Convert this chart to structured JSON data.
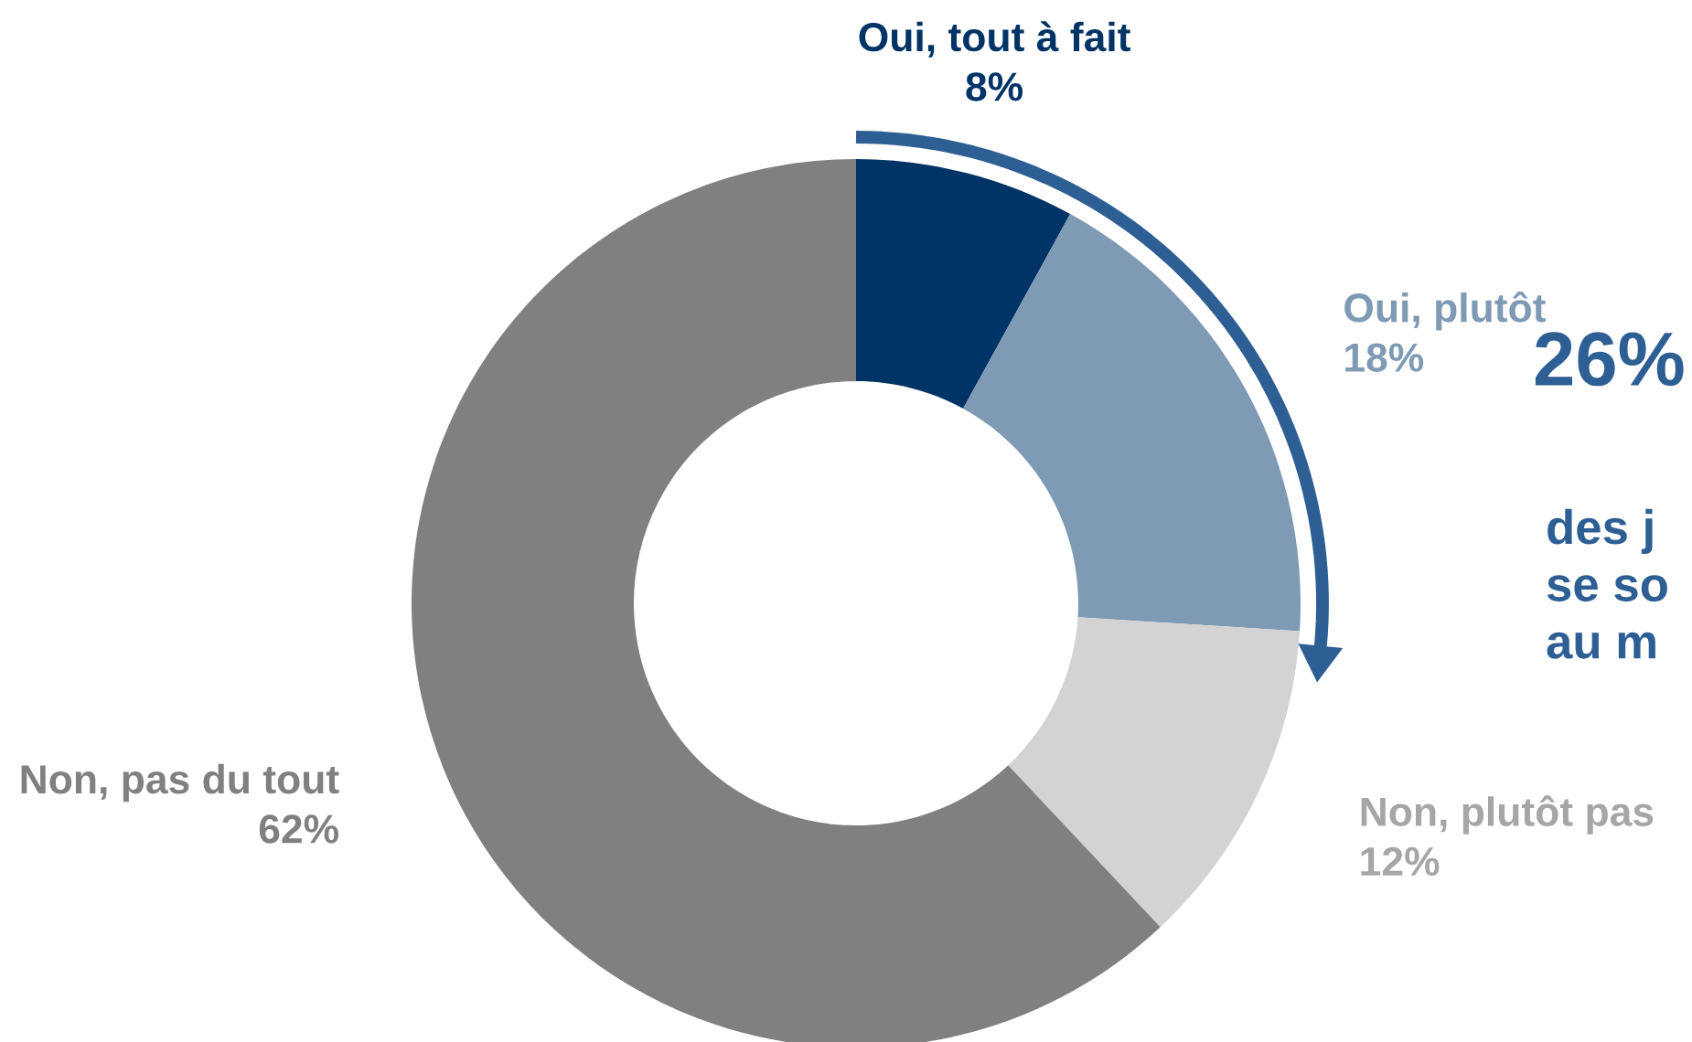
{
  "chart_data": {
    "type": "donut",
    "categories": [
      "Oui, tout à fait",
      "Oui, plutôt",
      "Non, plutôt pas",
      "Non, pas du tout"
    ],
    "values": [
      8,
      18,
      12,
      62
    ],
    "colors": [
      "#003366",
      "#7f9ab5",
      "#d3d3d3",
      "#808080"
    ],
    "value_labels": [
      "8%",
      "18%",
      "12%",
      "62%"
    ],
    "annotations": [
      "26%",
      "des j\nse so\nau m"
    ],
    "legend": false
  }
}
